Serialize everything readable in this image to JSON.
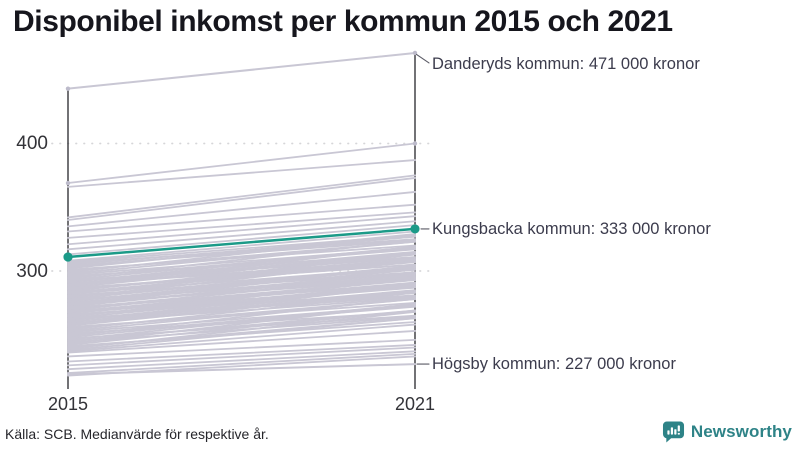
{
  "title": "Disponibel inkomst per kommun 2015 och 2021",
  "source": "Källa: SCB. Medianvärde för respektive år.",
  "branding": {
    "name": "Newsworthy",
    "color": "#2e8387"
  },
  "colors": {
    "background": "#ffffff",
    "line_gray": "#c9c7d4",
    "endpoint_gray": "#bdbbcb",
    "highlight": "#1b9a88",
    "axis": "#26262b",
    "grid": "#d6d6d9",
    "tick_text": "#333338",
    "annotation_text": "#3c3c4d",
    "leader": "#5b5b66",
    "title_text": "#16161d"
  },
  "chart_data": {
    "type": "line",
    "variant": "slopegraph",
    "title": "Disponibel inkomst per kommun 2015 och 2021",
    "x_categories": [
      "2015",
      "2021"
    ],
    "y_ticks": [
      {
        "value": 400,
        "label": "400"
      },
      {
        "value": 300,
        "label": "300"
      }
    ],
    "ylim": [
      214,
      475
    ],
    "grid": "dotted-horizontal",
    "legend": "none",
    "unit_suffix": "000 kronor",
    "highlighted_series": {
      "name": "Kungsbacka kommun",
      "values": [
        311,
        333
      ],
      "annotation": "Kungsbacka kommun: 333 000 kronor"
    },
    "labeled_series": [
      {
        "name": "Danderyds kommun",
        "values": [
          443,
          471
        ],
        "annotation": "Danderyds kommun: 471 000 kronor"
      },
      {
        "name": "Högsby kommun",
        "values": [
          219,
          227
        ],
        "annotation": "Högsby kommun: 227 000 kronor"
      }
    ],
    "background_series": [
      [
        369,
        400
      ],
      [
        366,
        387
      ],
      [
        342,
        375
      ],
      [
        340,
        373
      ],
      [
        335,
        362
      ],
      [
        331,
        352
      ],
      [
        326,
        346
      ],
      [
        321,
        343
      ],
      [
        317,
        339
      ],
      [
        313,
        336
      ],
      [
        218,
        233
      ],
      [
        220,
        235
      ],
      [
        223,
        237
      ],
      [
        226,
        240
      ],
      [
        229,
        242
      ],
      [
        233,
        246
      ],
      [
        236,
        253
      ],
      [
        237,
        258
      ],
      [
        238,
        263
      ],
      [
        239,
        268
      ],
      [
        240,
        263
      ],
      [
        241,
        260
      ],
      [
        242,
        269
      ],
      [
        243,
        274
      ],
      [
        244,
        264
      ],
      [
        245,
        269
      ],
      [
        246,
        274
      ],
      [
        247,
        265
      ],
      [
        248,
        274
      ],
      [
        249,
        279
      ],
      [
        250,
        272
      ],
      [
        251,
        268
      ],
      [
        252,
        273
      ],
      [
        253,
        278
      ],
      [
        254,
        283
      ],
      [
        255,
        278
      ],
      [
        256,
        275
      ],
      [
        257,
        284
      ],
      [
        258,
        289
      ],
      [
        259,
        279
      ],
      [
        260,
        284
      ],
      [
        261,
        289
      ],
      [
        262,
        280
      ],
      [
        263,
        289
      ],
      [
        264,
        294
      ],
      [
        265,
        287
      ],
      [
        266,
        283
      ],
      [
        267,
        288
      ],
      [
        268,
        293
      ],
      [
        269,
        298
      ],
      [
        270,
        293
      ],
      [
        271,
        290
      ],
      [
        272,
        299
      ],
      [
        273,
        304
      ],
      [
        274,
        294
      ],
      [
        275,
        299
      ],
      [
        276,
        304
      ],
      [
        277,
        295
      ],
      [
        278,
        304
      ],
      [
        279,
        309
      ],
      [
        280,
        302
      ],
      [
        281,
        298
      ],
      [
        282,
        303
      ],
      [
        283,
        308
      ],
      [
        284,
        313
      ],
      [
        285,
        308
      ],
      [
        286,
        305
      ],
      [
        287,
        314
      ],
      [
        288,
        319
      ],
      [
        289,
        309
      ],
      [
        290,
        314
      ],
      [
        291,
        319
      ],
      [
        292,
        310
      ],
      [
        293,
        319
      ],
      [
        294,
        324
      ],
      [
        295,
        317
      ],
      [
        296,
        313
      ],
      [
        297,
        318
      ],
      [
        298,
        323
      ],
      [
        299,
        328
      ],
      [
        300,
        323
      ],
      [
        301,
        320
      ],
      [
        302,
        329
      ],
      [
        303,
        327
      ],
      [
        304,
        324
      ],
      [
        305,
        327
      ],
      [
        306,
        325
      ],
      [
        307,
        328
      ],
      [
        308,
        331
      ],
      [
        258.5,
        283
      ],
      [
        261.5,
        285
      ],
      [
        264.5,
        290
      ],
      [
        267.5,
        291
      ],
      [
        270.5,
        296
      ],
      [
        273.5,
        297
      ],
      [
        276.5,
        301
      ],
      [
        279.5,
        303
      ],
      [
        282.5,
        307
      ],
      [
        285.5,
        309
      ],
      [
        288.5,
        313
      ],
      [
        291.5,
        315
      ],
      [
        262.5,
        281
      ],
      [
        268.5,
        287
      ],
      [
        274.5,
        293
      ],
      [
        280.5,
        299
      ],
      [
        286.5,
        305
      ],
      [
        292.5,
        311
      ],
      [
        265.5,
        283
      ],
      [
        271.5,
        289
      ],
      [
        277.5,
        295
      ],
      [
        283.5,
        301
      ],
      [
        289.5,
        307
      ]
    ]
  }
}
